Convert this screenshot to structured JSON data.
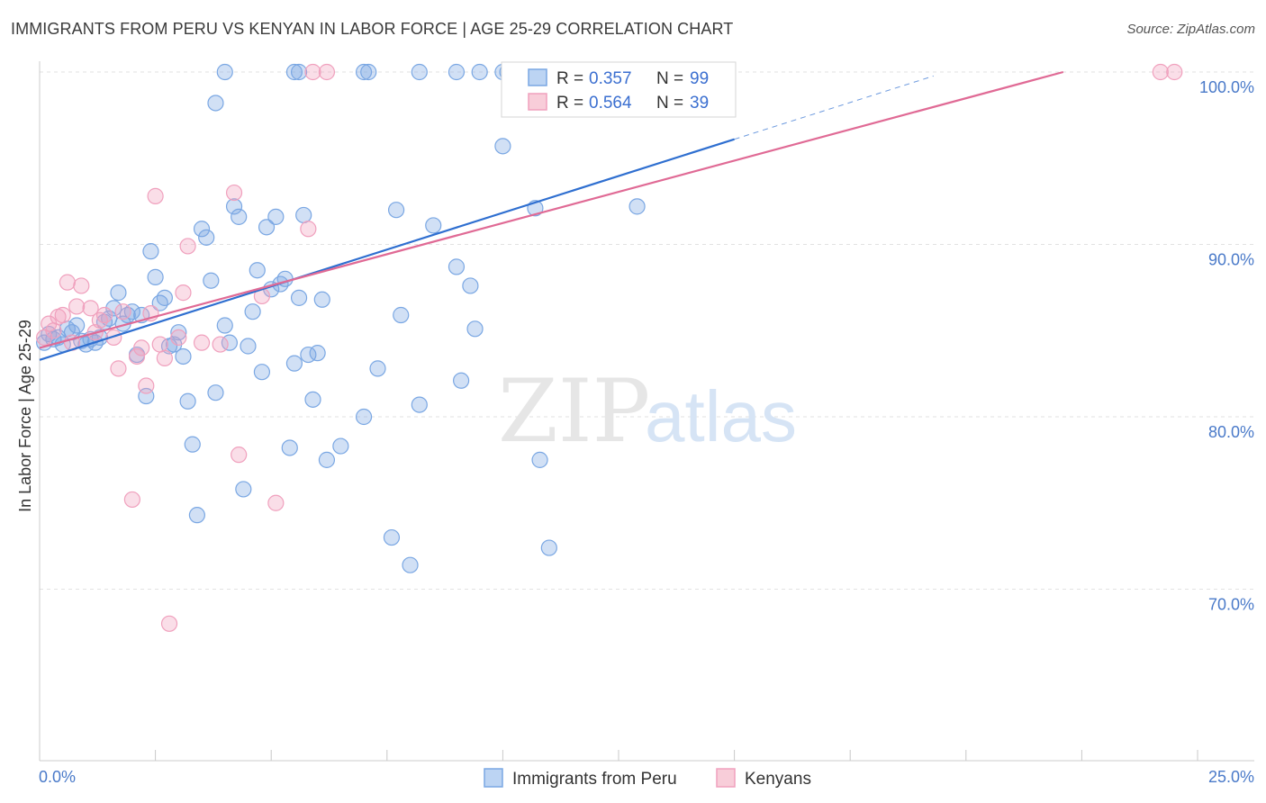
{
  "header": {
    "title": "IMMIGRANTS FROM PERU VS KENYAN IN LABOR FORCE | AGE 25-29 CORRELATION CHART",
    "source": "Source: ZipAtlas.com"
  },
  "watermark": {
    "zip": "ZIP",
    "atlas": "atlas"
  },
  "chart_data": {
    "type": "scatter",
    "title": "IMMIGRANTS FROM PERU VS KENYAN IN LABOR FORCE | AGE 25-29 CORRELATION CHART",
    "xlabel": "",
    "ylabel": "In Labor Force | Age 25-29",
    "xlim": [
      0,
      25
    ],
    "ylim": [
      60,
      100
    ],
    "x_tick_labels": [
      "0.0%",
      "25.0%"
    ],
    "y_ticks": [
      70,
      80,
      90,
      100
    ],
    "y_tick_labels": [
      "70.0%",
      "80.0%",
      "90.0%",
      "100.0%"
    ],
    "grid": true,
    "legend_position": "bottom",
    "stats": [
      {
        "r_label": "R =",
        "r": "0.357",
        "n_label": "N =",
        "n": "99"
      },
      {
        "r_label": "R =",
        "r": "0.564",
        "n_label": "N =",
        "n": "39"
      }
    ],
    "series": [
      {
        "name": "Immigrants from Peru",
        "color": "#7aa7e3",
        "line_color": "#2f6fd0",
        "trend": {
          "x0": 0,
          "y0": 83.3,
          "x1": 15,
          "y1": 96.1,
          "dash_to_x": 19.3
        },
        "points": [
          [
            0.1,
            84.3
          ],
          [
            0.2,
            84.8
          ],
          [
            0.3,
            84.5
          ],
          [
            0.4,
            84.6
          ],
          [
            0.5,
            84.2
          ],
          [
            0.6,
            85.1
          ],
          [
            0.7,
            84.9
          ],
          [
            0.9,
            84.4
          ],
          [
            0.8,
            85.3
          ],
          [
            1.0,
            84.2
          ],
          [
            1.1,
            84.5
          ],
          [
            1.2,
            84.3
          ],
          [
            1.3,
            84.6
          ],
          [
            1.4,
            85.5
          ],
          [
            1.5,
            85.7
          ],
          [
            1.6,
            86.3
          ],
          [
            1.7,
            87.2
          ],
          [
            1.8,
            85.4
          ],
          [
            1.9,
            85.9
          ],
          [
            2.0,
            86.1
          ],
          [
            2.1,
            83.6
          ],
          [
            2.2,
            85.9
          ],
          [
            2.3,
            81.2
          ],
          [
            2.4,
            89.6
          ],
          [
            2.5,
            88.1
          ],
          [
            2.6,
            86.6
          ],
          [
            2.7,
            86.9
          ],
          [
            2.8,
            84.1
          ],
          [
            2.9,
            84.2
          ],
          [
            3.0,
            84.9
          ],
          [
            3.1,
            83.5
          ],
          [
            3.2,
            80.9
          ],
          [
            3.3,
            78.4
          ],
          [
            3.4,
            74.3
          ],
          [
            3.5,
            90.9
          ],
          [
            3.6,
            90.4
          ],
          [
            3.7,
            87.9
          ],
          [
            3.8,
            81.4
          ],
          [
            4.0,
            85.3
          ],
          [
            4.1,
            84.3
          ],
          [
            4.2,
            92.2
          ],
          [
            4.3,
            91.6
          ],
          [
            4.4,
            75.8
          ],
          [
            4.5,
            84.1
          ],
          [
            4.6,
            86.1
          ],
          [
            4.7,
            88.5
          ],
          [
            4.8,
            82.6
          ],
          [
            4.9,
            91.0
          ],
          [
            5.0,
            87.4
          ],
          [
            5.1,
            91.6
          ],
          [
            5.2,
            87.7
          ],
          [
            5.3,
            88.0
          ],
          [
            5.4,
            78.2
          ],
          [
            5.5,
            83.1
          ],
          [
            5.6,
            86.9
          ],
          [
            5.7,
            91.7
          ],
          [
            5.8,
            83.6
          ],
          [
            5.9,
            81.0
          ],
          [
            6.0,
            83.7
          ],
          [
            6.1,
            86.8
          ],
          [
            6.2,
            77.5
          ],
          [
            6.5,
            78.3
          ],
          [
            7.0,
            80.0
          ],
          [
            7.3,
            82.8
          ],
          [
            7.6,
            73.0
          ],
          [
            7.8,
            85.9
          ],
          [
            7.7,
            92.0
          ],
          [
            8.0,
            71.4
          ],
          [
            8.2,
            80.7
          ],
          [
            8.5,
            91.1
          ],
          [
            9.0,
            88.7
          ],
          [
            9.1,
            82.1
          ],
          [
            9.3,
            87.6
          ],
          [
            9.4,
            85.1
          ],
          [
            10.0,
            95.7
          ],
          [
            10.7,
            92.1
          ],
          [
            10.8,
            77.5
          ],
          [
            11.0,
            72.4
          ],
          [
            12.0,
            100.0
          ],
          [
            12.5,
            100.0
          ],
          [
            12.6,
            100.0
          ],
          [
            3.8,
            98.2
          ],
          [
            4.0,
            100.0
          ],
          [
            5.5,
            100.0
          ],
          [
            5.6,
            100.0
          ],
          [
            7.0,
            100.0
          ],
          [
            7.1,
            100.0
          ],
          [
            8.2,
            100.0
          ],
          [
            9.0,
            100.0
          ],
          [
            9.5,
            100.0
          ],
          [
            10.0,
            100.0
          ],
          [
            10.1,
            100.0
          ],
          [
            10.5,
            100.0
          ],
          [
            11.5,
            100.0
          ],
          [
            12.4,
            100.0
          ],
          [
            12.7,
            100.0
          ],
          [
            13.0,
            100.0
          ],
          [
            13.2,
            100.0
          ],
          [
            12.9,
            92.2
          ]
        ]
      },
      {
        "name": "Kenyans",
        "color": "#f0a0bd",
        "line_color": "#e06a95",
        "trend": {
          "x0": 0,
          "y0": 84.0,
          "x1": 22.1,
          "y1": 100.0
        },
        "points": [
          [
            0.1,
            84.6
          ],
          [
            0.2,
            85.4
          ],
          [
            0.3,
            85.0
          ],
          [
            0.4,
            85.8
          ],
          [
            0.5,
            85.9
          ],
          [
            0.6,
            87.8
          ],
          [
            0.7,
            84.3
          ],
          [
            0.8,
            86.4
          ],
          [
            0.9,
            87.6
          ],
          [
            1.1,
            86.3
          ],
          [
            1.2,
            84.9
          ],
          [
            1.3,
            85.6
          ],
          [
            1.4,
            85.9
          ],
          [
            1.6,
            84.6
          ],
          [
            1.7,
            82.8
          ],
          [
            1.8,
            86.1
          ],
          [
            2.0,
            75.2
          ],
          [
            2.1,
            83.5
          ],
          [
            2.2,
            84.0
          ],
          [
            2.3,
            81.8
          ],
          [
            2.4,
            86.0
          ],
          [
            2.5,
            92.8
          ],
          [
            2.6,
            84.2
          ],
          [
            2.7,
            83.4
          ],
          [
            2.8,
            68.0
          ],
          [
            3.0,
            84.6
          ],
          [
            3.1,
            87.2
          ],
          [
            3.2,
            89.9
          ],
          [
            3.5,
            84.3
          ],
          [
            3.9,
            84.2
          ],
          [
            4.2,
            93.0
          ],
          [
            4.3,
            77.8
          ],
          [
            4.8,
            87.0
          ],
          [
            5.1,
            75.0
          ],
          [
            5.8,
            90.9
          ],
          [
            5.9,
            100.0
          ],
          [
            6.2,
            100.0
          ],
          [
            24.2,
            100.0
          ],
          [
            24.5,
            100.0
          ]
        ]
      }
    ]
  }
}
